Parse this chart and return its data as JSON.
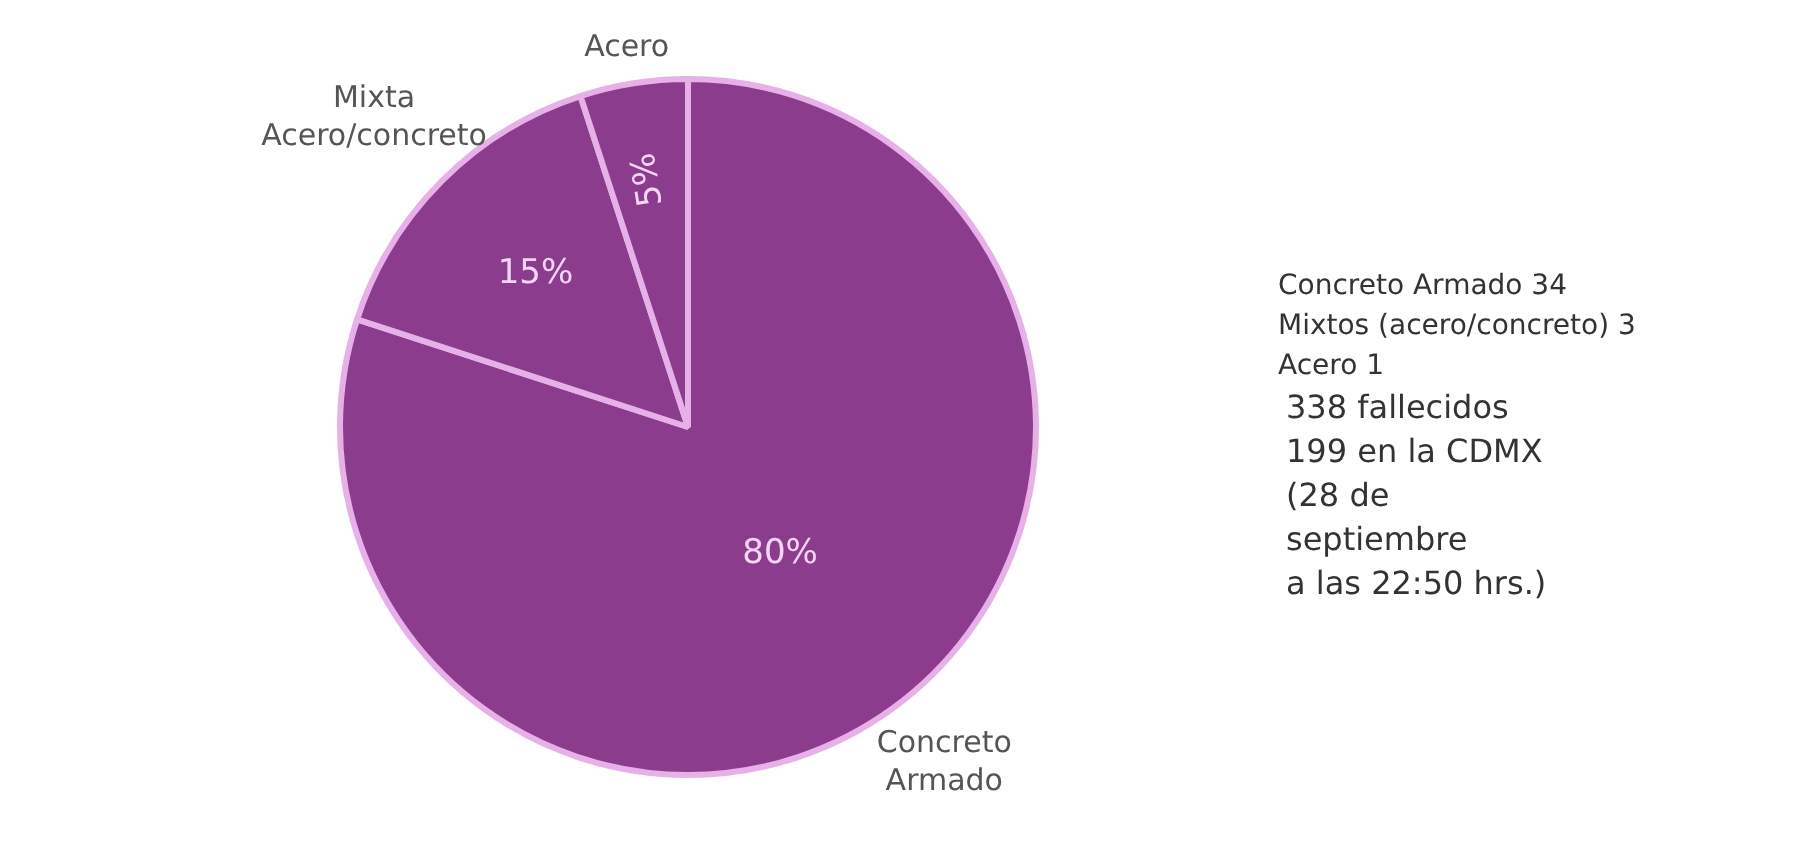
{
  "chart_data": {
    "type": "pie",
    "categories": [
      "Concreto Armado",
      "Mixta Acero/concreto",
      "Acero"
    ],
    "values": [
      80,
      15,
      5
    ],
    "colors": [
      "#8c3c8c",
      "#8c3c8c",
      "#8c3c8c"
    ],
    "value_labels": [
      "80%",
      "15%",
      "5%"
    ],
    "annotations": [
      "Concreto Armado 34",
      "Mixtos (acero/concreto) 3",
      "Acero 1",
      "338 fallecidos",
      "199 en la CDMX",
      "(28 de",
      "septiembre",
      "a las 22:50 hrs.)"
    ]
  }
}
